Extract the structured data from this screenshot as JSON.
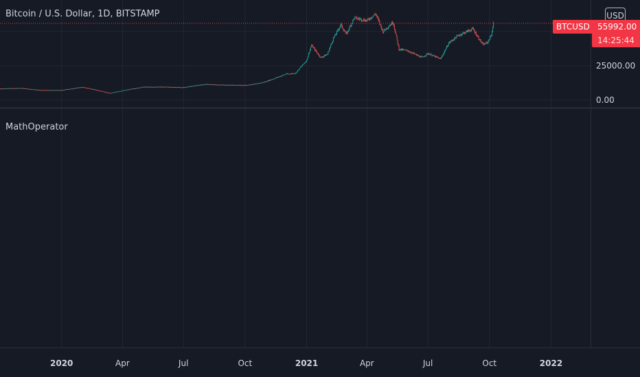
{
  "header": {
    "title": "Bitcoin / U.S. Dollar, 1D, BITSTAMP",
    "currency_button": "USD"
  },
  "indicator": {
    "title": "MathOperator"
  },
  "price_badge": {
    "symbol": "BTCUSD",
    "price": "55992.00",
    "countdown": "14:25:44"
  },
  "colors": {
    "background": "#161a25",
    "grid": "#232734",
    "up": "#26a69a",
    "down": "#ef5350",
    "price_line": "#f23645",
    "text": "#d1d4dc"
  },
  "chart_data": {
    "type": "candlestick",
    "title": "Bitcoin / U.S. Dollar, 1D, BITSTAMP",
    "xlabel": "",
    "ylabel": "",
    "x_ticks": [
      {
        "label": "2020",
        "date": "2020-01-01",
        "bold": true
      },
      {
        "label": "Apr",
        "date": "2020-04-01",
        "bold": false
      },
      {
        "label": "Jul",
        "date": "2020-07-01",
        "bold": false
      },
      {
        "label": "Oct",
        "date": "2020-10-01",
        "bold": false
      },
      {
        "label": "2021",
        "date": "2021-01-01",
        "bold": true
      },
      {
        "label": "Apr",
        "date": "2021-04-01",
        "bold": false
      },
      {
        "label": "Jul",
        "date": "2021-07-01",
        "bold": false
      },
      {
        "label": "Oct",
        "date": "2021-10-01",
        "bold": false
      },
      {
        "label": "2022",
        "date": "2022-01-01",
        "bold": true
      }
    ],
    "y_ticks": [
      {
        "label": "0.00",
        "value": 0
      },
      {
        "label": "25000.00",
        "value": 25000
      }
    ],
    "xlim": [
      "2019-10-01",
      "2022-03-01"
    ],
    "ylim": [
      -3000,
      68000
    ],
    "last_price": 55992,
    "series": [
      {
        "dates": [
          "2019-10-01",
          "2019-11-01",
          "2019-12-01",
          "2020-01-01",
          "2020-02-01",
          "2020-03-01",
          "2020-03-13",
          "2020-04-01",
          "2020-05-01",
          "2020-06-01",
          "2020-07-01",
          "2020-08-01",
          "2020-09-01",
          "2020-10-01",
          "2020-10-20",
          "2020-11-01",
          "2020-11-15",
          "2020-12-01",
          "2020-12-15",
          "2021-01-01",
          "2021-01-08",
          "2021-01-22",
          "2021-02-01",
          "2021-02-10",
          "2021-02-21",
          "2021-03-01",
          "2021-03-13",
          "2021-04-01",
          "2021-04-14",
          "2021-04-25",
          "2021-05-10",
          "2021-05-19",
          "2021-06-01",
          "2021-06-22",
          "2021-07-01",
          "2021-07-20",
          "2021-08-01",
          "2021-08-15",
          "2021-09-06",
          "2021-09-21",
          "2021-09-28",
          "2021-10-04",
          "2021-10-07"
        ],
        "values": [
          8300,
          8700,
          7200,
          7200,
          9500,
          6500,
          5000,
          6900,
          9500,
          9600,
          9200,
          11500,
          11000,
          10800,
          12000,
          13500,
          16000,
          19000,
          19500,
          29000,
          40000,
          31000,
          33500,
          45000,
          55000,
          48000,
          60000,
          58000,
          63000,
          50000,
          57000,
          37000,
          36000,
          31000,
          34000,
          30000,
          41500,
          47000,
          52000,
          40500,
          42000,
          47500,
          55992
        ]
      }
    ]
  }
}
